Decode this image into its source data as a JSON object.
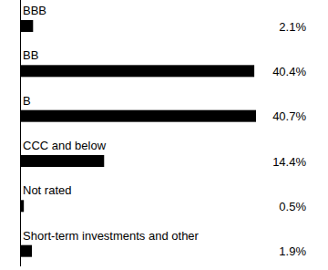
{
  "chart_data": {
    "type": "bar",
    "orientation": "horizontal",
    "categories": [
      "BBB",
      "BB",
      "B",
      "CCC and below",
      "Not rated",
      "Short-term investments and other"
    ],
    "values": [
      2.1,
      40.4,
      40.7,
      14.4,
      0.5,
      1.9
    ],
    "value_labels": [
      "2.1%",
      "40.4%",
      "40.7%",
      "14.4%",
      "0.5%",
      "1.9%"
    ],
    "color": "#000000",
    "data_labels": true,
    "tick_labels": false,
    "grid": false
  }
}
